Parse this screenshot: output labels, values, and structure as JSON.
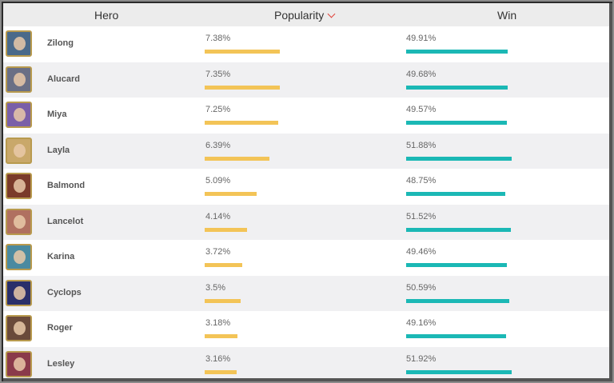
{
  "header": {
    "hero": "Hero",
    "popularity": "Popularity",
    "win": "Win"
  },
  "colors": {
    "popularity_bar": "#f3c457",
    "win_bar": "#1bb8b5",
    "sort_arrow": "#e0433a"
  },
  "heroes": [
    {
      "name": "Zilong",
      "popularity": "7.38%",
      "win": "49.91%",
      "popularity_value": 7.38,
      "win_value": 49.91
    },
    {
      "name": "Alucard",
      "popularity": "7.35%",
      "win": "49.68%",
      "popularity_value": 7.35,
      "win_value": 49.68
    },
    {
      "name": "Miya",
      "popularity": "7.25%",
      "win": "49.57%",
      "popularity_value": 7.25,
      "win_value": 49.57
    },
    {
      "name": "Layla",
      "popularity": "6.39%",
      "win": "51.88%",
      "popularity_value": 6.39,
      "win_value": 51.88
    },
    {
      "name": "Balmond",
      "popularity": "5.09%",
      "win": "48.75%",
      "popularity_value": 5.09,
      "win_value": 48.75
    },
    {
      "name": "Lancelot",
      "popularity": "4.14%",
      "win": "51.52%",
      "popularity_value": 4.14,
      "win_value": 51.52
    },
    {
      "name": "Karina",
      "popularity": "3.72%",
      "win": "49.46%",
      "popularity_value": 3.72,
      "win_value": 49.46
    },
    {
      "name": "Cyclops",
      "popularity": "3.5%",
      "win": "50.59%",
      "popularity_value": 3.5,
      "win_value": 50.59
    },
    {
      "name": "Roger",
      "popularity": "3.18%",
      "win": "49.16%",
      "popularity_value": 3.18,
      "win_value": 49.16
    },
    {
      "name": "Lesley",
      "popularity": "3.16%",
      "win": "51.92%",
      "popularity_value": 3.16,
      "win_value": 51.92
    }
  ]
}
